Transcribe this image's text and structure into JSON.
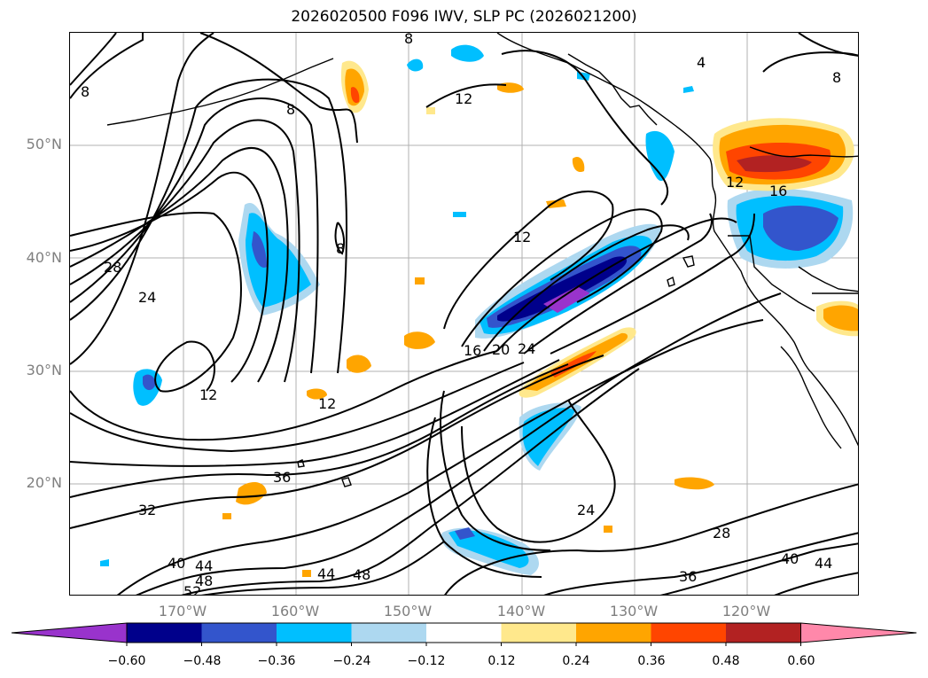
{
  "title": "2026020500 F096 IWV, SLP PC (2026021200)",
  "lat_labels": [
    "50°N",
    "40°N",
    "30°N",
    "20°N"
  ],
  "lon_labels": [
    "170°W",
    "160°W",
    "150°W",
    "140°W",
    "130°W",
    "120°W"
  ],
  "colorbar": {
    "ticks": [
      "−0.60",
      "−0.48",
      "−0.36",
      "−0.24",
      "−0.12",
      "0.12",
      "0.24",
      "0.36",
      "0.48",
      "0.60"
    ],
    "colors": [
      "#9933cc",
      "#00008b",
      "#3355cc",
      "#00bfff",
      "#add8f0",
      "#ffffff",
      "#ffe88c",
      "#ffa500",
      "#ff4500",
      "#b22222",
      "#ff88aa"
    ],
    "extend": "both"
  },
  "contour_labels": [
    "8",
    "8",
    "8",
    "4",
    "8",
    "12",
    "12",
    "8",
    "12",
    "16",
    "28",
    "24",
    "12",
    "12",
    "16",
    "20",
    "24",
    "36",
    "32",
    "24",
    "28",
    "36",
    "40",
    "44",
    "40",
    "44",
    "48",
    "52",
    "44",
    "48"
  ]
}
